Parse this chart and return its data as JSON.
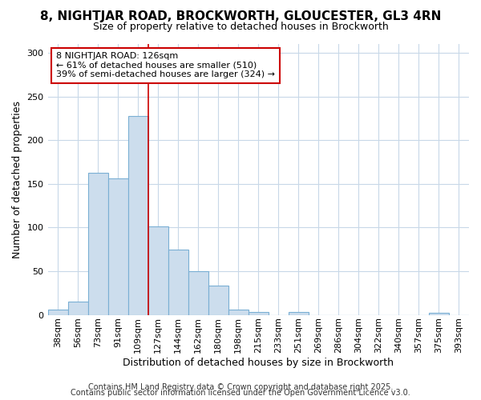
{
  "title1": "8, NIGHTJAR ROAD, BROCKWORTH, GLOUCESTER, GL3 4RN",
  "title2": "Size of property relative to detached houses in Brockworth",
  "xlabel": "Distribution of detached houses by size in Brockworth",
  "ylabel": "Number of detached properties",
  "categories": [
    "38sqm",
    "56sqm",
    "73sqm",
    "91sqm",
    "109sqm",
    "127sqm",
    "144sqm",
    "162sqm",
    "180sqm",
    "198sqm",
    "215sqm",
    "233sqm",
    "251sqm",
    "269sqm",
    "286sqm",
    "304sqm",
    "322sqm",
    "340sqm",
    "357sqm",
    "375sqm",
    "393sqm"
  ],
  "values": [
    6,
    15,
    163,
    156,
    228,
    101,
    75,
    50,
    34,
    6,
    3,
    0,
    3,
    0,
    0,
    0,
    0,
    0,
    0,
    2,
    0
  ],
  "bar_color": "#ccdded",
  "bar_edge_color": "#7aafd4",
  "vline_x_idx": 5,
  "vline_color": "#cc0000",
  "annotation_text": "8 NIGHTJAR ROAD: 126sqm\n← 61% of detached houses are smaller (510)\n39% of semi-detached houses are larger (324) →",
  "annotation_box_color": "#ffffff",
  "annotation_border_color": "#cc0000",
  "ylim": [
    0,
    310
  ],
  "yticks": [
    0,
    50,
    100,
    150,
    200,
    250,
    300
  ],
  "footer1": "Contains HM Land Registry data © Crown copyright and database right 2025.",
  "footer2": "Contains public sector information licensed under the Open Government Licence v3.0.",
  "bg_color": "#ffffff",
  "plot_bg_color": "#ffffff",
  "grid_color": "#c8d8e8",
  "title1_fontsize": 11,
  "title2_fontsize": 9,
  "xlabel_fontsize": 9,
  "ylabel_fontsize": 9,
  "tick_fontsize": 8,
  "footer_fontsize": 7
}
